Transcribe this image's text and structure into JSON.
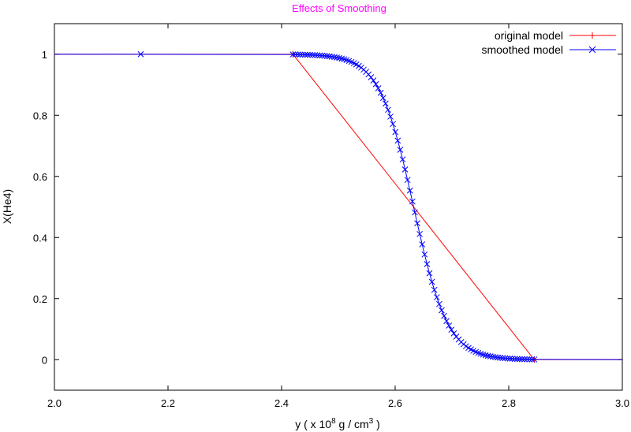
{
  "chart_data": {
    "type": "line",
    "title": "Effects of Smoothing",
    "xlabel": "y ( x 10^8 g / cm^3 )",
    "xlabel_parts": {
      "pre": "y ( x 10",
      "sup1": "8",
      "mid": " g / cm",
      "sup2": "3",
      "post": " )"
    },
    "ylabel": "X(He4)",
    "xlim": [
      2.0,
      3.0
    ],
    "ylim": [
      -0.1,
      1.1
    ],
    "xticks": [
      2.0,
      2.2,
      2.4,
      2.6,
      2.8,
      3.0
    ],
    "xtick_labels": [
      "2.0",
      "2.2",
      "2.4",
      "2.6",
      "2.8",
      "3.0"
    ],
    "yticks": [
      0,
      0.2,
      0.4,
      0.6,
      0.8,
      1
    ],
    "ytick_labels": [
      "0",
      "0.2",
      "0.4",
      "0.6",
      "0.8",
      "1"
    ],
    "grid": false,
    "legend_position": "top-right",
    "series": [
      {
        "name": "original model",
        "color": "#ff0000",
        "marker": "plus",
        "x": [
          2.0,
          2.42,
          2.845,
          3.0
        ],
        "y": [
          1,
          1,
          0,
          0
        ],
        "marker_x": [
          2.42,
          2.845
        ],
        "marker_y": [
          1,
          0
        ]
      },
      {
        "name": "smoothed model",
        "color": "#0000ff",
        "marker": "x",
        "line_x": [
          2.0,
          2.42,
          3.0
        ],
        "line_y": [
          1,
          1,
          0
        ],
        "extra_marker_x": [
          2.152
        ],
        "extra_marker_y": [
          1
        ],
        "sigmoid_x": [
          2.42,
          2.845
        ],
        "sigmoid_center": 2.6325,
        "sigmoid_width": 0.03,
        "sigmoid_points": 100
      }
    ]
  }
}
